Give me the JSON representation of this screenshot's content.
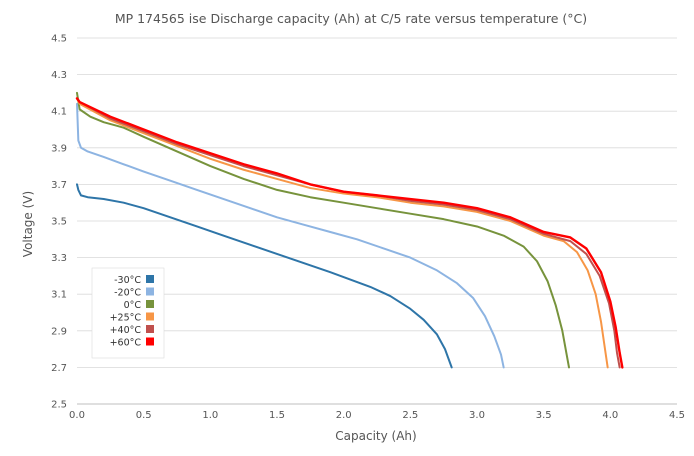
{
  "chart_data": {
    "type": "line",
    "title": "MP 174565 ise Discharge capacity (Ah) at C/5 rate versus temperature (°C)",
    "xlabel": "Capacity (Ah)",
    "ylabel": "Voltage (V)",
    "xlim": [
      0,
      4.5
    ],
    "ylim": [
      2.5,
      4.5
    ],
    "x_ticks": [
      0.0,
      0.5,
      1.0,
      1.5,
      2.0,
      2.5,
      3.0,
      3.5,
      4.0,
      4.5
    ],
    "x_tick_labels": [
      "0.0",
      "0.5",
      "1.0",
      "1.5",
      "2.0",
      "2.5",
      "3.0",
      "3.5",
      "4.0",
      "4.5"
    ],
    "y_ticks": [
      2.5,
      2.7,
      2.9,
      3.1,
      3.3,
      3.5,
      3.7,
      3.9,
      4.1,
      4.3,
      4.5
    ],
    "y_tick_labels": [
      "2.5",
      "2.7",
      "2.9",
      "3.1",
      "3.3",
      "3.5",
      "3.7",
      "3.9",
      "4.1",
      "4.3",
      "4.5"
    ],
    "grid": "horizontal",
    "legend_position": "bottom-left",
    "series": [
      {
        "name": "-30°C",
        "color": "#2e75a8",
        "x": [
          0.0,
          0.01,
          0.03,
          0.08,
          0.2,
          0.35,
          0.5,
          0.7,
          0.9,
          1.1,
          1.3,
          1.5,
          1.7,
          1.9,
          2.05,
          2.2,
          2.35,
          2.5,
          2.6,
          2.7,
          2.76,
          2.81
        ],
        "y": [
          3.7,
          3.67,
          3.64,
          3.63,
          3.62,
          3.6,
          3.57,
          3.52,
          3.47,
          3.42,
          3.37,
          3.32,
          3.27,
          3.22,
          3.18,
          3.14,
          3.09,
          3.02,
          2.96,
          2.88,
          2.8,
          2.7
        ]
      },
      {
        "name": "-20°C",
        "color": "#2e75a8",
        "x": [
          0.0,
          0.01,
          0.03,
          0.08,
          0.2,
          0.35,
          0.5,
          0.7,
          0.9,
          1.1,
          1.3,
          1.5,
          1.7,
          1.9,
          2.1,
          2.3,
          2.5,
          2.7,
          2.85,
          2.97,
          3.06,
          3.13,
          3.18,
          3.2
        ],
        "y": [
          4.14,
          3.94,
          3.9,
          3.88,
          3.85,
          3.81,
          3.77,
          3.72,
          3.67,
          3.62,
          3.57,
          3.52,
          3.48,
          3.44,
          3.4,
          3.35,
          3.3,
          3.23,
          3.16,
          3.08,
          2.98,
          2.87,
          2.77,
          2.7
        ]
      },
      {
        "name": "-20°C",
        "color": "#8db4e2",
        "x": [
          0.0,
          0.01,
          0.03,
          0.08,
          0.2,
          0.35,
          0.5,
          0.7,
          0.9,
          1.1,
          1.3,
          1.5,
          1.7,
          1.9,
          2.1,
          2.3,
          2.5,
          2.7,
          2.85,
          2.97,
          3.06,
          3.13,
          3.18,
          3.2
        ],
        "y": [
          4.14,
          3.94,
          3.9,
          3.88,
          3.85,
          3.81,
          3.77,
          3.72,
          3.67,
          3.62,
          3.57,
          3.52,
          3.48,
          3.44,
          3.4,
          3.35,
          3.3,
          3.23,
          3.16,
          3.08,
          2.98,
          2.87,
          2.77,
          2.7
        ]
      },
      {
        "name": "0°C",
        "color": "#77933c",
        "x": [
          0.0,
          0.02,
          0.1,
          0.2,
          0.3,
          0.35,
          0.5,
          0.75,
          1.0,
          1.25,
          1.5,
          1.75,
          2.0,
          2.25,
          2.5,
          2.75,
          3.0,
          3.2,
          3.35,
          3.45,
          3.53,
          3.59,
          3.64,
          3.67,
          3.69
        ],
        "y": [
          4.2,
          4.11,
          4.07,
          4.04,
          4.02,
          4.01,
          3.96,
          3.88,
          3.8,
          3.73,
          3.67,
          3.63,
          3.6,
          3.57,
          3.54,
          3.51,
          3.47,
          3.42,
          3.36,
          3.28,
          3.17,
          3.04,
          2.9,
          2.78,
          2.7
        ]
      },
      {
        "name": "+25°C",
        "color": "#f79646",
        "x": [
          0.0,
          0.02,
          0.25,
          0.5,
          0.75,
          1.0,
          1.25,
          1.5,
          1.75,
          2.0,
          2.25,
          2.5,
          2.75,
          3.0,
          3.25,
          3.5,
          3.65,
          3.75,
          3.83,
          3.89,
          3.93,
          3.96,
          3.98
        ],
        "y": [
          4.17,
          4.14,
          4.05,
          3.98,
          3.91,
          3.84,
          3.78,
          3.73,
          3.68,
          3.65,
          3.63,
          3.6,
          3.58,
          3.55,
          3.5,
          3.42,
          3.39,
          3.33,
          3.23,
          3.1,
          2.95,
          2.8,
          2.7
        ]
      },
      {
        "name": "+40°C",
        "color": "#c0504d",
        "x": [
          0.0,
          0.02,
          0.25,
          0.5,
          0.75,
          1.0,
          1.25,
          1.5,
          1.75,
          2.0,
          2.25,
          2.5,
          2.75,
          3.0,
          3.25,
          3.5,
          3.7,
          3.82,
          3.92,
          3.99,
          4.03,
          4.05,
          4.07
        ],
        "y": [
          4.17,
          4.15,
          4.06,
          3.99,
          3.92,
          3.86,
          3.8,
          3.75,
          3.7,
          3.66,
          3.64,
          3.61,
          3.59,
          3.56,
          3.51,
          3.43,
          3.39,
          3.32,
          3.2,
          3.05,
          2.9,
          2.78,
          2.7
        ]
      },
      {
        "name": "+60°C",
        "color": "#ff0000",
        "x": [
          0.0,
          0.02,
          0.25,
          0.5,
          0.75,
          1.0,
          1.25,
          1.5,
          1.75,
          2.0,
          2.25,
          2.5,
          2.75,
          3.0,
          3.25,
          3.5,
          3.7,
          3.82,
          3.93,
          4.0,
          4.04,
          4.07,
          4.09
        ],
        "y": [
          4.17,
          4.15,
          4.07,
          4.0,
          3.93,
          3.87,
          3.81,
          3.76,
          3.7,
          3.66,
          3.64,
          3.62,
          3.6,
          3.57,
          3.52,
          3.44,
          3.41,
          3.35,
          3.22,
          3.06,
          2.92,
          2.78,
          2.7
        ]
      }
    ]
  }
}
